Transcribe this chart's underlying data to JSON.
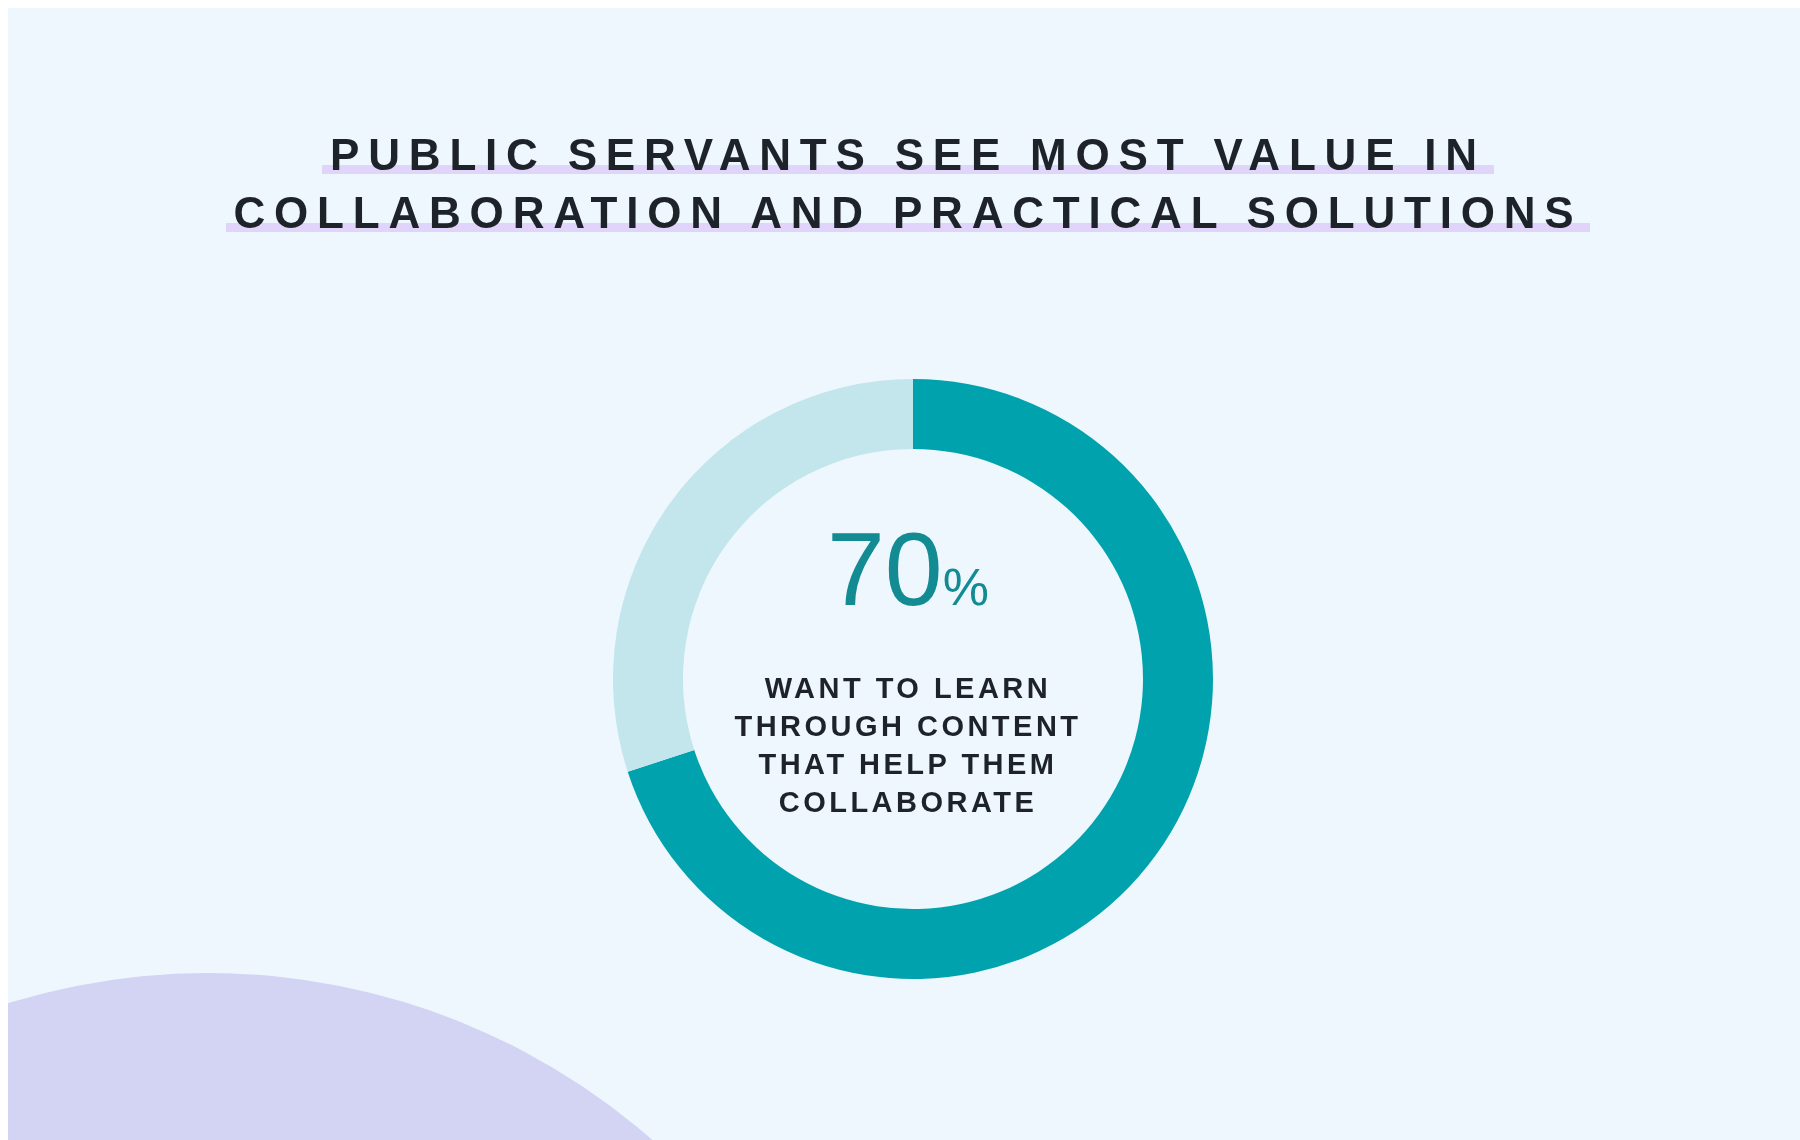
{
  "chart_data": {
    "type": "donut",
    "title": "PUBLIC SERVANTS SEE MOST VALUE IN COLLABORATION AND PRACTICAL SOLUTIONS",
    "categories": [
      "WANT TO LEARN THROUGH CONTENT THAT HELP THEM COLLABORATE",
      null
    ],
    "values": [
      70,
      30
    ],
    "colors": [
      "#00a3ad",
      "#c3e6ec"
    ],
    "value_labels": [
      "70%",
      null
    ]
  }
}
